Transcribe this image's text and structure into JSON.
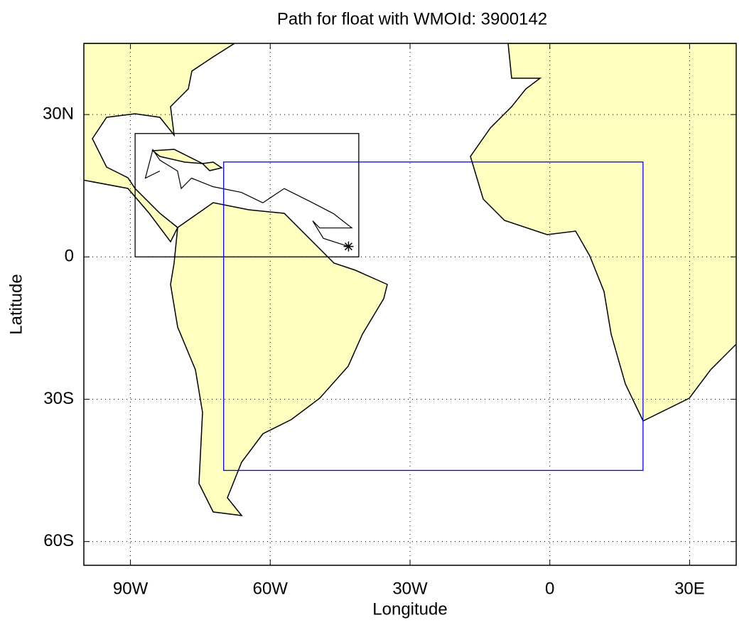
{
  "chart_data": {
    "type": "map",
    "title": "Path for float with WMOId: 3900142",
    "x_label": "Longitude",
    "y_label": "Latitude",
    "xlim": [
      -100,
      40
    ],
    "ylim": [
      -65,
      45
    ],
    "xticks": [
      {
        "value": -90,
        "label": "90W"
      },
      {
        "value": -60,
        "label": "60W"
      },
      {
        "value": -30,
        "label": "30W"
      },
      0,
      {
        "value": 30,
        "label": "30E"
      }
    ],
    "yticks": [
      {
        "value": -60,
        "label": "60S"
      },
      {
        "value": -30,
        "label": "30S"
      },
      0,
      {
        "value": 30,
        "label": "30N"
      }
    ],
    "grid": true,
    "regions": [
      {
        "color": "#000000",
        "lon": [
          -89,
          -41
        ],
        "lat": [
          0,
          26
        ]
      },
      {
        "color": "#0000ff",
        "lon": [
          -70,
          20
        ],
        "lat": [
          -45,
          20
        ]
      }
    ],
    "track": {
      "color": "#000000",
      "lon": [
        -43.2,
        -48.6,
        -50.9,
        -49.4,
        -42.5,
        -46.4,
        -50.9,
        -57.0,
        -61.6,
        -66.2,
        -72.3,
        -76.9,
        -79.1,
        -79.9,
        -83.7,
        -85.2,
        -86.8,
        -83.7
      ],
      "lat": [
        2.2,
        3.9,
        7.6,
        6.1,
        6.1,
        9.1,
        11.4,
        14.4,
        11.4,
        13.6,
        14.8,
        16.6,
        14.4,
        18.1,
        20.4,
        22.6,
        16.6,
        18.1
      ]
    }
  }
}
